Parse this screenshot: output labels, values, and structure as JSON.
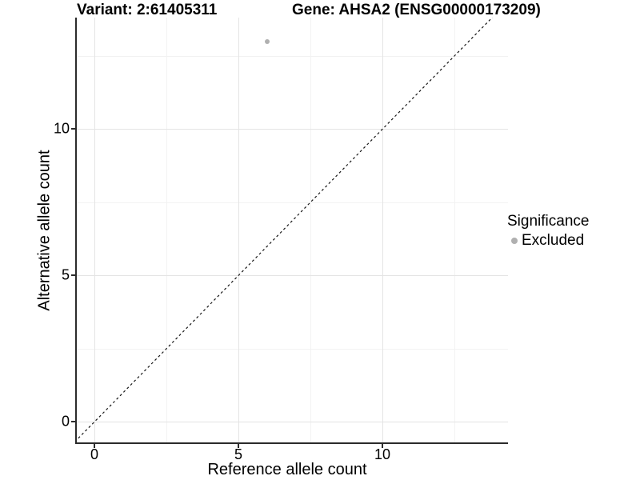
{
  "header": {
    "variant_title": "Variant: 2:61405311",
    "gene_title": "Gene: AHSA2 (ENSG00000173209)"
  },
  "axes": {
    "x_label": "Reference allele count",
    "y_label": "Alternative allele count"
  },
  "legend": {
    "title": "Significance",
    "items": [
      {
        "label": "Excluded",
        "color": "#b0b0b0"
      }
    ]
  },
  "chart_data": {
    "type": "scatter",
    "title": "Variant: 2:61405311 — Gene: AHSA2 (ENSG00000173209)",
    "xlabel": "Reference allele count",
    "ylabel": "Alternative allele count",
    "xlim": [
      -0.61,
      14.36
    ],
    "ylim": [
      -0.7,
      13.81
    ],
    "x_ticks": [
      0,
      5,
      10
    ],
    "y_ticks": [
      0,
      5,
      10
    ],
    "x_minor_ticks": [
      2.5,
      7.5,
      12.5
    ],
    "y_minor_ticks": [
      2.5,
      7.5,
      12.5
    ],
    "grid": "major+minor",
    "legend_position": "right",
    "series": [
      {
        "name": "Excluded",
        "color": "#b0b0b0",
        "points": [
          {
            "x": 6,
            "y": 13
          }
        ]
      }
    ],
    "reference_line": {
      "type": "identity",
      "slope": 1,
      "intercept": 0,
      "style": "dashed",
      "color": "#161616",
      "span": [
        -0.8,
        14.5
      ]
    },
    "colors": {
      "grid_major": "#e4e4e4",
      "grid_minor": "#f2f2f2",
      "axis_line": "#2b2b2b",
      "background": "#ffffff"
    }
  }
}
